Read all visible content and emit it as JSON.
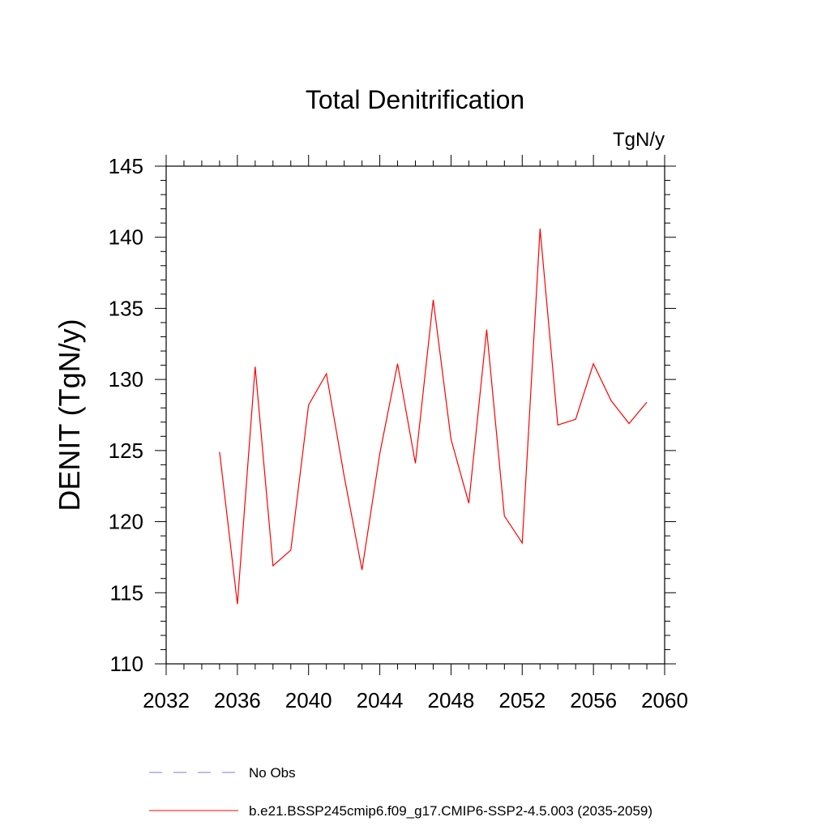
{
  "chart_data": {
    "type": "line",
    "title": "Total Denitrification",
    "units_label": "TgN/y",
    "ylabel": "DENIT  (TgN/y)",
    "xlabel": "",
    "xlim": [
      2032,
      2060
    ],
    "ylim": [
      110,
      145
    ],
    "x_ticks": [
      2032,
      2036,
      2040,
      2044,
      2048,
      2052,
      2056,
      2060
    ],
    "y_ticks": [
      110,
      115,
      120,
      125,
      130,
      135,
      140,
      145
    ],
    "grid": false,
    "legend_position": "bottom",
    "series": [
      {
        "name": "b.e21.BSSP245cmip6.f09_g17.CMIP6-SSP2-4.5.003 (2035-2059)",
        "color": "#ff0000",
        "x": [
          2035,
          2036,
          2037,
          2038,
          2039,
          2040,
          2041,
          2042,
          2043,
          2044,
          2045,
          2046,
          2047,
          2048,
          2049,
          2050,
          2051,
          2052,
          2053,
          2054,
          2055,
          2056,
          2057,
          2058,
          2059
        ],
        "y": [
          124.9,
          114.2,
          130.9,
          116.9,
          118.0,
          128.2,
          130.4,
          123.2,
          116.6,
          124.8,
          131.1,
          124.1,
          135.6,
          125.8,
          121.3,
          133.5,
          120.4,
          118.5,
          140.6,
          126.8,
          127.2,
          131.1,
          128.5,
          126.9,
          128.4
        ]
      }
    ],
    "legend": [
      {
        "label": "No Obs",
        "color": "#7f7fcc",
        "dash": "dashed"
      },
      {
        "label": "b.e21.BSSP245cmip6.f09_g17.CMIP6-SSP2-4.5.003 (2035-2059)",
        "color": "#ff0000",
        "dash": "solid"
      }
    ]
  }
}
